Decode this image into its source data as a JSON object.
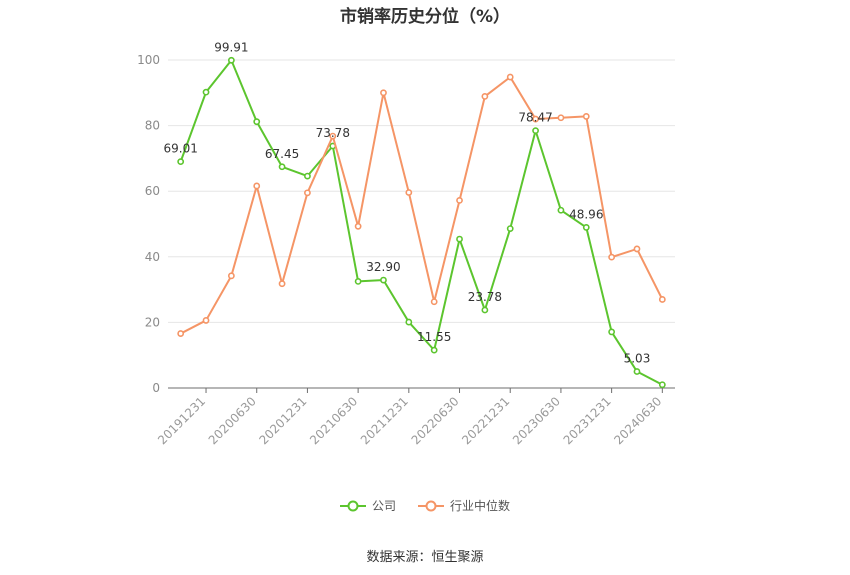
{
  "chart_data": {
    "type": "line",
    "title": "市销率历史分位（%）",
    "ylim": [
      0,
      100
    ],
    "yticks": [
      0,
      20,
      40,
      60,
      80,
      100
    ],
    "grid": true,
    "legend_position": "bottom",
    "x_tick_labels": [
      "20191231",
      "20200630",
      "20201231",
      "20210630",
      "20211231",
      "20220630",
      "20221231",
      "20230630",
      "20231231",
      "20240630"
    ],
    "n_points": 20,
    "tick_every": 2,
    "series": [
      {
        "name": "公司",
        "color": "#5cc52e",
        "values": [
          69.01,
          90.2,
          99.91,
          81.2,
          67.45,
          64.6,
          73.78,
          32.5,
          32.9,
          20.1,
          11.55,
          45.4,
          23.78,
          48.6,
          78.47,
          54.2,
          48.96,
          17.1,
          5.03,
          1.0
        ],
        "labels": [
          "69.01",
          null,
          "99.91",
          null,
          "67.45",
          null,
          "73.78",
          null,
          "32.90",
          null,
          "11.55",
          null,
          "23.78",
          null,
          "78.47",
          null,
          "48.96",
          null,
          "5.03",
          null
        ]
      },
      {
        "name": "行业中位数",
        "color": "#f59566",
        "values": [
          16.6,
          20.6,
          34.2,
          61.6,
          31.8,
          59.5,
          76.8,
          49.3,
          90.0,
          59.6,
          26.3,
          57.2,
          88.9,
          94.8,
          82.0,
          82.4,
          82.8,
          39.9,
          42.4,
          27.0
        ]
      }
    ]
  },
  "footer": {
    "source": "数据来源：恒生聚源"
  }
}
